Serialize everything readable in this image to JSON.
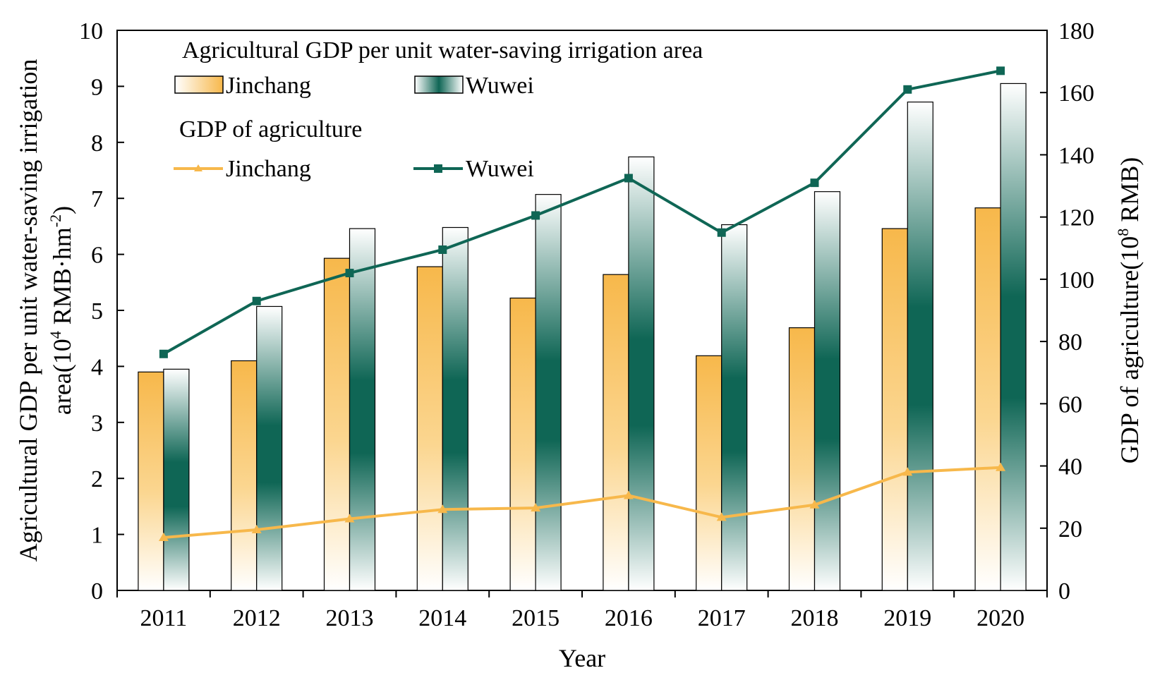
{
  "chart_data": {
    "type": "bar",
    "title": "",
    "xlabel": "Year",
    "categories": [
      "2011",
      "2012",
      "2013",
      "2014",
      "2015",
      "2016",
      "2017",
      "2018",
      "2019",
      "2020"
    ],
    "left_axis": {
      "label_main": "Agricultural GDP per unit water-saving irrigation",
      "label_unit_prefix": "area(10",
      "label_unit_sup1": "4",
      "label_unit_mid": " RMB·hm",
      "label_unit_sup2": "-2",
      "label_unit_suffix": ")",
      "ylim": [
        0,
        10
      ],
      "ticks": [
        "0",
        "1",
        "2",
        "3",
        "4",
        "5",
        "6",
        "7",
        "8",
        "9",
        "10"
      ]
    },
    "right_axis": {
      "label_prefix": "GDP of agriculture(10",
      "label_sup": "8",
      "label_suffix": " RMB)",
      "ylim": [
        0,
        180
      ],
      "ticks": [
        "0",
        "20",
        "40",
        "60",
        "80",
        "100",
        "120",
        "140",
        "160",
        "180"
      ]
    },
    "legend": {
      "bar_heading": "Agricultural GDP per unit water-saving irrigation area",
      "line_heading": "GDP  of agriculture"
    },
    "bar_series": [
      {
        "name": "Jinchang",
        "axis": "left",
        "color": "#f7b84b",
        "values": [
          3.9,
          4.1,
          5.93,
          5.78,
          5.22,
          5.64,
          4.19,
          4.69,
          6.46,
          6.83
        ]
      },
      {
        "name": "Wuwei",
        "axis": "left",
        "color": "#0f6655",
        "values": [
          3.95,
          5.07,
          6.46,
          6.48,
          7.07,
          7.74,
          6.53,
          7.12,
          8.72,
          9.05
        ]
      }
    ],
    "line_series": [
      {
        "name": "Jinchang",
        "axis": "right",
        "color": "#f7b84b",
        "marker": "triangle",
        "values": [
          17,
          19.5,
          23,
          26,
          26.5,
          30.5,
          23.5,
          27.5,
          38,
          39.5
        ]
      },
      {
        "name": "Wuwei",
        "axis": "right",
        "color": "#0f6655",
        "marker": "square",
        "values": [
          76,
          93,
          102,
          109.5,
          120.5,
          132.5,
          115,
          131,
          161,
          167
        ]
      }
    ]
  }
}
